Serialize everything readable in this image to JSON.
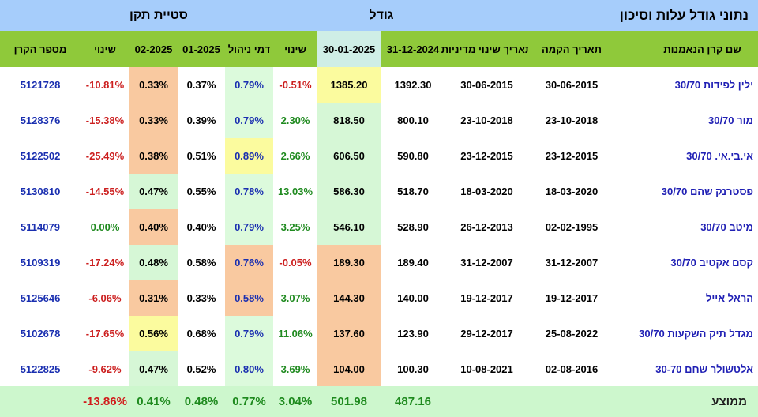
{
  "top_headers": {
    "deviation": "סטיית תקן",
    "size": "גודל",
    "main_title": "נתוני גודל עלות וסיכון"
  },
  "columns": {
    "fund_number": "מספר הקרן",
    "change2": "שינוי",
    "dev_02_2025": "02-2025",
    "dev_01_2025": "01-2025",
    "mgmt_fee": "דמי ניהול",
    "change1": "שינוי",
    "size_30_01_2025": "30-01-2025",
    "size_31_12_2024": "31-12-2024",
    "policy_change_date": "תאריך שינוי מדיניות",
    "founded_date": "תאריך הקמה",
    "fund_name": "שם קרן הנאמנות"
  },
  "colors": {
    "top_band": "#a6cdfb",
    "header_band": "#8fc93a",
    "highlight_header": "#cfeee6",
    "green_cell": "#dcfadc",
    "orange_cell": "#f9c9a0",
    "yellow_cell": "#fbfb9e"
  },
  "rows": [
    {
      "fund_number": "5121728",
      "change2": "-10.81%",
      "dev02": "0.33%",
      "dev01": "0.37%",
      "fee": "0.79%",
      "change1": "-0.51%",
      "size2": "1385.20",
      "size1": "1392.30",
      "policy": "30-06-2015",
      "founded": "30-06-2015",
      "name": "ילין לפידות 30/70"
    },
    {
      "fund_number": "5128376",
      "change2": "-15.38%",
      "dev02": "0.33%",
      "dev01": "0.39%",
      "fee": "0.79%",
      "change1": "2.30%",
      "size2": "818.50",
      "size1": "800.10",
      "policy": "23-10-2018",
      "founded": "23-10-2018",
      "name": "מור 30/70"
    },
    {
      "fund_number": "5122502",
      "change2": "-25.49%",
      "dev02": "0.38%",
      "dev01": "0.51%",
      "fee": "0.89%",
      "change1": "2.66%",
      "size2": "606.50",
      "size1": "590.80",
      "policy": "23-12-2015",
      "founded": "23-12-2015",
      "name": "אי.בי.אי. 30/70"
    },
    {
      "fund_number": "5130810",
      "change2": "-14.55%",
      "dev02": "0.47%",
      "dev01": "0.55%",
      "fee": "0.78%",
      "change1": "13.03%",
      "size2": "586.30",
      "size1": "518.70",
      "policy": "18-03-2020",
      "founded": "18-03-2020",
      "name": "פסטרנק שהם 30/70"
    },
    {
      "fund_number": "5114079",
      "change2": "0.00%",
      "dev02": "0.40%",
      "dev01": "0.40%",
      "fee": "0.79%",
      "change1": "3.25%",
      "size2": "546.10",
      "size1": "528.90",
      "policy": "26-12-2013",
      "founded": "02-02-1995",
      "name": "מיטב 30/70"
    },
    {
      "fund_number": "5109319",
      "change2": "-17.24%",
      "dev02": "0.48%",
      "dev01": "0.58%",
      "fee": "0.76%",
      "change1": "-0.05%",
      "size2": "189.30",
      "size1": "189.40",
      "policy": "31-12-2007",
      "founded": "31-12-2007",
      "name": "קסם אקטיב 30/70"
    },
    {
      "fund_number": "5125646",
      "change2": "-6.06%",
      "dev02": "0.31%",
      "dev01": "0.33%",
      "fee": "0.58%",
      "change1": "3.07%",
      "size2": "144.30",
      "size1": "140.00",
      "policy": "19-12-2017",
      "founded": "19-12-2017",
      "name": "הראל אייל"
    },
    {
      "fund_number": "5102678",
      "change2": "-17.65%",
      "dev02": "0.56%",
      "dev01": "0.68%",
      "fee": "0.79%",
      "change1": "11.06%",
      "size2": "137.60",
      "size1": "123.90",
      "policy": "29-12-2017",
      "founded": "25-08-2022",
      "name": "מגדל תיק השקעות 30/70"
    },
    {
      "fund_number": "5122825",
      "change2": "-9.62%",
      "dev02": "0.47%",
      "dev01": "0.52%",
      "fee": "0.80%",
      "change1": "3.69%",
      "size2": "104.00",
      "size1": "100.30",
      "policy": "10-08-2021",
      "founded": "02-08-2016",
      "name": "אלטשולר שחם 30-70"
    }
  ],
  "average": {
    "label": "ממוצע",
    "change2": "-13.86%",
    "dev02": "0.41%",
    "dev01": "0.48%",
    "fee": "0.77%",
    "change1": "3.04%",
    "size2": "501.98",
    "size1": "487.16"
  }
}
